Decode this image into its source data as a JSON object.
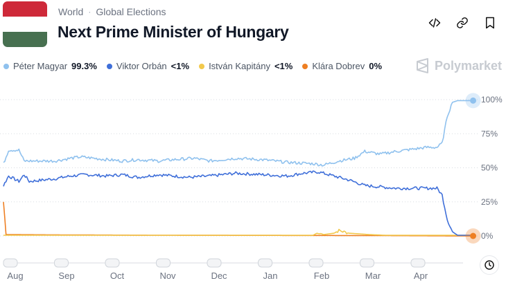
{
  "header": {
    "breadcrumb": [
      "World",
      "Global Elections"
    ],
    "title": "Next Prime Minister of Hungary",
    "flag_colors": [
      "#ce2939",
      "#ffffff",
      "#477050"
    ]
  },
  "brand": {
    "name": "Polymarket"
  },
  "legend": [
    {
      "name": "Péter Magyar",
      "value": "99.3%",
      "color": "#8fc1ee"
    },
    {
      "name": "Viktor Orbán",
      "value": "<1%",
      "color": "#3f6fd9"
    },
    {
      "name": "István Kapitány",
      "value": "<1%",
      "color": "#f2c94c"
    },
    {
      "name": "Klára Dobrev",
      "value": "0%",
      "color": "#ee7f23"
    }
  ],
  "chart_data": {
    "type": "line",
    "y_ticks": [
      "100%",
      "75%",
      "50%",
      "25%",
      "0%"
    ],
    "x_ticks": [
      "Aug",
      "Sep",
      "Oct",
      "Nov",
      "Dec",
      "Jan",
      "Feb",
      "Mar",
      "Apr"
    ],
    "ylim": [
      0,
      100
    ],
    "xlim": [
      0,
      9.2
    ],
    "series": [
      {
        "name": "Péter Magyar",
        "color": "#8fc1ee",
        "points": [
          [
            0,
            53
          ],
          [
            0.1,
            63
          ],
          [
            0.3,
            63
          ],
          [
            0.4,
            55
          ],
          [
            1,
            55
          ],
          [
            1.3,
            57
          ],
          [
            1.5,
            58
          ],
          [
            2,
            56
          ],
          [
            2.3,
            55
          ],
          [
            2.6,
            56
          ],
          [
            3,
            55
          ],
          [
            3.3,
            56
          ],
          [
            3.7,
            57
          ],
          [
            4,
            55
          ],
          [
            4.5,
            57
          ],
          [
            5,
            56
          ],
          [
            5.5,
            54
          ],
          [
            6,
            53
          ],
          [
            6.2,
            52
          ],
          [
            6.5,
            55
          ],
          [
            6.8,
            57
          ],
          [
            7,
            62
          ],
          [
            7.3,
            60
          ],
          [
            7.6,
            62
          ],
          [
            7.8,
            63
          ],
          [
            8,
            64
          ],
          [
            8.2,
            65
          ],
          [
            8.4,
            65
          ],
          [
            8.5,
            68
          ],
          [
            8.6,
            88
          ],
          [
            8.7,
            98
          ],
          [
            8.8,
            99.3
          ],
          [
            9.1,
            99.3
          ]
        ]
      },
      {
        "name": "Viktor Orbán",
        "color": "#3f6fd9",
        "points": [
          [
            0,
            37
          ],
          [
            0.1,
            44
          ],
          [
            0.3,
            40
          ],
          [
            0.4,
            45
          ],
          [
            0.5,
            40
          ],
          [
            1,
            42
          ],
          [
            1.3,
            44
          ],
          [
            1.6,
            45
          ],
          [
            2,
            44
          ],
          [
            2.3,
            45
          ],
          [
            2.6,
            43
          ],
          [
            3,
            45
          ],
          [
            3.3,
            44
          ],
          [
            3.6,
            43
          ],
          [
            4,
            44
          ],
          [
            4.5,
            46
          ],
          [
            5,
            45
          ],
          [
            5.5,
            44
          ],
          [
            5.8,
            46
          ],
          [
            6.1,
            47
          ],
          [
            6.4,
            44
          ],
          [
            6.7,
            41
          ],
          [
            7,
            37
          ],
          [
            7.3,
            36
          ],
          [
            7.6,
            35
          ],
          [
            7.9,
            35
          ],
          [
            8.2,
            35
          ],
          [
            8.4,
            35
          ],
          [
            8.5,
            30
          ],
          [
            8.6,
            12
          ],
          [
            8.7,
            3
          ],
          [
            8.8,
            0.5
          ],
          [
            9.1,
            0.5
          ]
        ]
      },
      {
        "name": "István Kapitány",
        "color": "#f2c94c",
        "points": [
          [
            0,
            0.5
          ],
          [
            6.0,
            0.5
          ],
          [
            6.1,
            2.5
          ],
          [
            6.2,
            1
          ],
          [
            6.4,
            2
          ],
          [
            6.5,
            4
          ],
          [
            6.7,
            2
          ],
          [
            6.9,
            1.5
          ],
          [
            7.1,
            1
          ],
          [
            7.4,
            0.5
          ],
          [
            9.1,
            0.5
          ]
        ]
      },
      {
        "name": "Klára Dobrev",
        "color": "#ee7f23",
        "points": [
          [
            0,
            25
          ],
          [
            0.05,
            1
          ],
          [
            1,
            0.8
          ],
          [
            3,
            0.5
          ],
          [
            5,
            0.4
          ],
          [
            7,
            0.3
          ],
          [
            9.1,
            0
          ]
        ]
      }
    ]
  }
}
